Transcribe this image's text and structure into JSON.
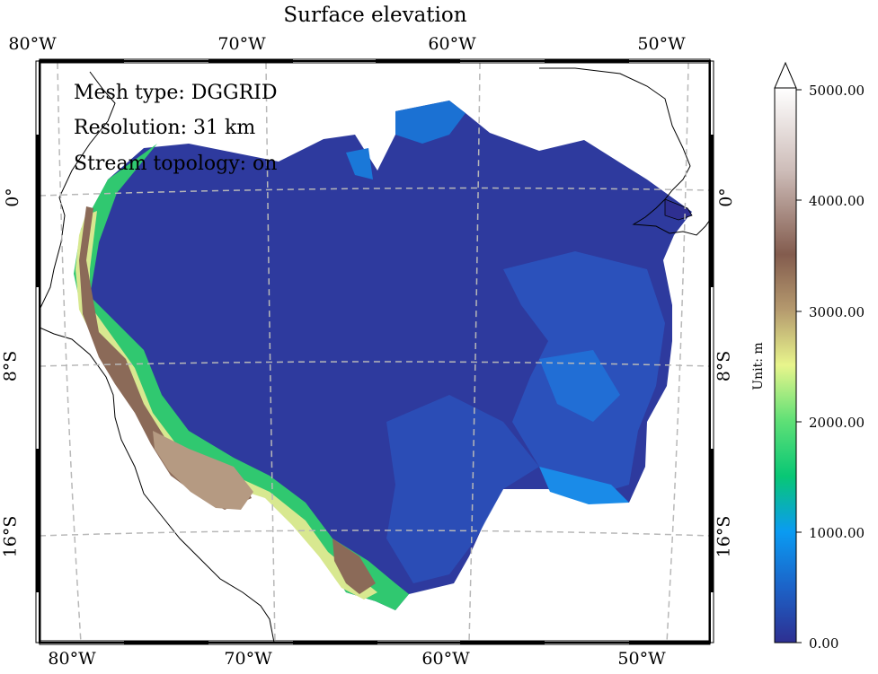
{
  "title": "Surface elevation",
  "annotations": {
    "mesh_type": "Mesh type: DGGRID",
    "resolution": "Resolution: 31 km",
    "stream_topology": "Stream topology: on"
  },
  "lon_labels": [
    "80°W",
    "70°W",
    "60°W",
    "50°W"
  ],
  "lat_labels": [
    "0°",
    "8°S",
    "16°S"
  ],
  "colorbar": {
    "unit_label": "Unit: m",
    "tick_labels": [
      "0.00",
      "1000.00",
      "2000.00",
      "3000.00",
      "4000.00",
      "5000.00"
    ],
    "range": [
      0,
      5000
    ],
    "extend": "max",
    "colors": [
      "#2e2f91",
      "#1c63c8",
      "#0a9bf2",
      "#08c775",
      "#5fe076",
      "#e8f58c",
      "#b59a6e",
      "#835c4e",
      "#cdbcb8",
      "#ffffff"
    ]
  },
  "map": {
    "projection": "orthographic-like graticule",
    "graticule": "dashed grey",
    "colors": {
      "lowland": "#2e3a9e",
      "lowland_alt": "#2a4fb8",
      "mid": "#1a78d8",
      "andes_green": "#30c870",
      "andes_yellow": "#d8e890",
      "andes_brown": "#8b6a58",
      "coastline": "#000000"
    }
  }
}
